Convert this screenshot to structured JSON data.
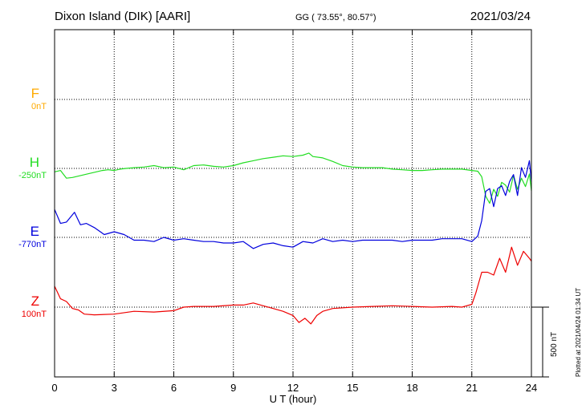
{
  "header": {
    "station": "Dixon Island (DIK)  [AARI]",
    "coords": "GG ( 73.55°,  80.57°)",
    "date": "2021/03/24"
  },
  "footer_note": "Plotted at 2021/04/24 01:34 UT",
  "chart_data": {
    "type": "line",
    "xlabel": "U T (hour)",
    "xlim": [
      0,
      24
    ],
    "xticks": [
      "0",
      "3",
      "6",
      "9",
      "12",
      "15",
      "18",
      "21",
      "24"
    ],
    "scale_bar": "500 nT",
    "grid": true,
    "series": [
      {
        "name": "F",
        "offset": "0nT",
        "color": "#ffaa00",
        "x": [],
        "y": []
      },
      {
        "name": "H",
        "offset": "-250nT",
        "color": "#22dd22",
        "x": [
          0,
          0.3,
          0.6,
          0.9,
          1.2,
          1.5,
          1.8,
          2.1,
          2.4,
          2.7,
          3,
          3.3,
          3.6,
          4,
          4.5,
          5,
          5.5,
          6,
          6.5,
          7,
          7.5,
          8,
          8.5,
          9,
          9.5,
          10,
          10.5,
          11,
          11.5,
          12,
          12.5,
          12.8,
          13,
          13.5,
          14,
          14.5,
          15,
          15.5,
          16,
          16.5,
          17,
          17.5,
          18,
          18.5,
          19,
          19.5,
          20,
          20.5,
          21,
          21.3,
          21.5,
          21.7,
          21.9,
          22.1,
          22.3,
          22.5,
          22.7,
          22.9,
          23.1,
          23.3,
          23.5,
          23.7,
          23.9,
          24
        ],
        "y": [
          -25,
          -15,
          -70,
          -65,
          -55,
          -45,
          -35,
          -25,
          -15,
          -10,
          -15,
          -5,
          0,
          5,
          10,
          20,
          5,
          10,
          -10,
          20,
          25,
          15,
          10,
          20,
          40,
          55,
          70,
          80,
          90,
          85,
          95,
          110,
          85,
          75,
          50,
          20,
          10,
          5,
          5,
          5,
          -5,
          -10,
          -15,
          -15,
          -10,
          -5,
          -5,
          -5,
          -15,
          -20,
          -60,
          -200,
          -250,
          -150,
          -200,
          -100,
          -120,
          -170,
          -50,
          -150,
          -70,
          -130,
          -40,
          -160
        ]
      },
      {
        "name": "E",
        "offset": "-770nT",
        "color": "#0000dd",
        "x": [
          0,
          0.3,
          0.6,
          1,
          1.3,
          1.6,
          2,
          2.5,
          3,
          3.5,
          4,
          4.5,
          5,
          5.5,
          6,
          6.5,
          7,
          7.5,
          8,
          8.5,
          9,
          9.5,
          10,
          10.5,
          11,
          11.5,
          12,
          12.5,
          13,
          13.5,
          14,
          14.5,
          15,
          15.5,
          16,
          16.5,
          17,
          17.5,
          18,
          18.5,
          19,
          19.5,
          20,
          20.5,
          21,
          21.3,
          21.5,
          21.7,
          21.9,
          22.1,
          22.3,
          22.5,
          22.7,
          22.9,
          23.1,
          23.3,
          23.5,
          23.7,
          23.9,
          24
        ],
        "y": [
          200,
          100,
          110,
          180,
          90,
          100,
          70,
          20,
          40,
          20,
          -20,
          -20,
          -30,
          0,
          -20,
          -10,
          -20,
          -30,
          -30,
          -40,
          -40,
          -30,
          -80,
          -50,
          -40,
          -60,
          -70,
          -30,
          -40,
          -10,
          -30,
          -20,
          -30,
          -20,
          -20,
          -20,
          -20,
          -30,
          -20,
          -20,
          -20,
          -10,
          -10,
          -10,
          -30,
          10,
          120,
          330,
          350,
          220,
          350,
          370,
          300,
          400,
          450,
          300,
          500,
          430,
          550,
          400
        ]
      },
      {
        "name": "Z",
        "offset": "100nT",
        "color": "#ee0000",
        "x": [
          0,
          0.3,
          0.6,
          0.9,
          1.2,
          1.5,
          2,
          3,
          4,
          5,
          6,
          6.5,
          7,
          8,
          9,
          9.5,
          10,
          10.5,
          11,
          11.5,
          12,
          12.3,
          12.6,
          12.9,
          13.2,
          13.5,
          14,
          15,
          16,
          17,
          18,
          19,
          20,
          20.5,
          21,
          21.2,
          21.5,
          21.8,
          22.1,
          22.4,
          22.7,
          23,
          23.3,
          23.6,
          23.9,
          24
        ],
        "y": [
          150,
          60,
          40,
          -10,
          -20,
          -50,
          -55,
          -50,
          -30,
          -35,
          -25,
          0,
          5,
          5,
          15,
          15,
          30,
          10,
          -10,
          -30,
          -60,
          -110,
          -80,
          -120,
          -60,
          -30,
          -10,
          0,
          5,
          10,
          5,
          0,
          5,
          0,
          20,
          100,
          250,
          250,
          230,
          350,
          250,
          430,
          300,
          400,
          350,
          330
        ]
      }
    ]
  }
}
